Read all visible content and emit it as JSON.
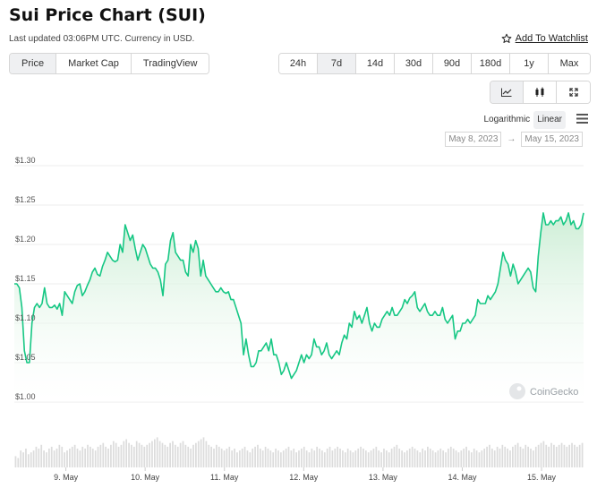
{
  "header": {
    "title": "Sui Price Chart (SUI)",
    "updated": "Last updated 03:06PM UTC. Currency in USD.",
    "watchlist_label": "Add To Watchlist"
  },
  "type_tabs": [
    {
      "label": "Price",
      "active": true
    },
    {
      "label": "Market Cap",
      "active": false
    },
    {
      "label": "TradingView",
      "active": false
    }
  ],
  "range_tabs": [
    {
      "label": "24h",
      "active": false
    },
    {
      "label": "7d",
      "active": true
    },
    {
      "label": "14d",
      "active": false
    },
    {
      "label": "30d",
      "active": false
    },
    {
      "label": "90d",
      "active": false
    },
    {
      "label": "180d",
      "active": false
    },
    {
      "label": "1y",
      "active": false
    },
    {
      "label": "Max",
      "active": false
    }
  ],
  "view_buttons": [
    {
      "icon": "line-chart-icon",
      "active": true
    },
    {
      "icon": "candlestick-icon",
      "active": false
    },
    {
      "icon": "fullscreen-icon",
      "active": false
    }
  ],
  "scale": {
    "log_label": "Logarithmic",
    "linear_label": "Linear",
    "active": "Linear"
  },
  "date_range": {
    "from": "May 8, 2023",
    "arrow": "→",
    "to": "May 15, 2023"
  },
  "watermark": "CoinGecko",
  "colors": {
    "line": "#16c784",
    "area_top": "#d3f2dc",
    "volume": "#dcdcdc",
    "grid": "#eeeeee",
    "active_bg": "#eff0f2"
  },
  "chart_data": {
    "type": "area",
    "title": "",
    "xlabel": "",
    "ylabel": "",
    "ylim": [
      1.0,
      1.3
    ],
    "yticks": [
      {
        "value": 1.3,
        "label": "$1.30"
      },
      {
        "value": 1.25,
        "label": "$1.25"
      },
      {
        "value": 1.2,
        "label": "$1.20"
      },
      {
        "value": 1.15,
        "label": "$1.15"
      },
      {
        "value": 1.1,
        "label": "$1.10"
      },
      {
        "value": 1.05,
        "label": "$1.05"
      },
      {
        "value": 1.0,
        "label": "$1.00"
      }
    ],
    "xticks": [
      {
        "t": 0.65,
        "label": "9. May"
      },
      {
        "t": 1.65,
        "label": "10. May"
      },
      {
        "t": 2.65,
        "label": "11. May"
      },
      {
        "t": 3.65,
        "label": "12. May"
      },
      {
        "t": 4.65,
        "label": "13. May"
      },
      {
        "t": 5.65,
        "label": "14. May"
      },
      {
        "t": 6.65,
        "label": "15. May"
      }
    ],
    "x_range": [
      0,
      7.18
    ],
    "grid": true,
    "legend": "none",
    "series": [
      {
        "values": [
          1.15,
          1.15,
          1.145,
          1.12,
          1.065,
          1.05,
          1.05,
          1.1,
          1.12,
          1.125,
          1.12,
          1.125,
          1.145,
          1.125,
          1.12,
          1.12,
          1.123,
          1.118,
          1.125,
          1.11,
          1.14,
          1.135,
          1.13,
          1.125,
          1.14,
          1.148,
          1.15,
          1.135,
          1.14,
          1.148,
          1.155,
          1.165,
          1.17,
          1.162,
          1.16,
          1.172,
          1.18,
          1.19,
          1.185,
          1.18,
          1.178,
          1.18,
          1.2,
          1.19,
          1.225,
          1.215,
          1.205,
          1.212,
          1.195,
          1.18,
          1.19,
          1.2,
          1.195,
          1.185,
          1.175,
          1.17,
          1.17,
          1.165,
          1.155,
          1.135,
          1.175,
          1.18,
          1.205,
          1.215,
          1.19,
          1.185,
          1.18,
          1.18,
          1.165,
          1.16,
          1.2,
          1.19,
          1.205,
          1.195,
          1.16,
          1.18,
          1.16,
          1.155,
          1.15,
          1.145,
          1.14,
          1.14,
          1.145,
          1.14,
          1.138,
          1.14,
          1.13,
          1.13,
          1.12,
          1.11,
          1.1,
          1.06,
          1.08,
          1.06,
          1.045,
          1.045,
          1.05,
          1.065,
          1.065,
          1.07,
          1.075,
          1.065,
          1.08,
          1.06,
          1.06,
          1.05,
          1.035,
          1.04,
          1.05,
          1.04,
          1.03,
          1.035,
          1.04,
          1.05,
          1.06,
          1.05,
          1.06,
          1.055,
          1.06,
          1.08,
          1.07,
          1.07,
          1.06,
          1.065,
          1.075,
          1.06,
          1.055,
          1.06,
          1.065,
          1.06,
          1.075,
          1.085,
          1.08,
          1.1,
          1.095,
          1.115,
          1.105,
          1.11,
          1.1,
          1.11,
          1.12,
          1.1,
          1.09,
          1.1,
          1.095,
          1.095,
          1.105,
          1.11,
          1.115,
          1.11,
          1.12,
          1.11,
          1.11,
          1.115,
          1.12,
          1.13,
          1.125,
          1.132,
          1.135,
          1.14,
          1.12,
          1.115,
          1.12,
          1.125,
          1.115,
          1.11,
          1.11,
          1.115,
          1.11,
          1.11,
          1.12,
          1.105,
          1.1,
          1.105,
          1.11,
          1.08,
          1.09,
          1.09,
          1.1,
          1.1,
          1.105,
          1.1,
          1.105,
          1.11,
          1.13,
          1.125,
          1.125,
          1.125,
          1.135,
          1.13,
          1.135,
          1.14,
          1.15,
          1.17,
          1.19,
          1.18,
          1.175,
          1.16,
          1.175,
          1.165,
          1.15,
          1.155,
          1.16,
          1.165,
          1.17,
          1.165,
          1.145,
          1.14,
          1.185,
          1.215,
          1.24,
          1.225,
          1.225,
          1.23,
          1.225,
          1.23,
          1.23,
          1.235,
          1.225,
          1.23,
          1.24,
          1.225,
          1.23,
          1.22,
          1.22,
          1.225,
          1.24
        ]
      }
    ],
    "volume": [
      0.3,
      0.25,
      0.45,
      0.4,
      0.5,
      0.35,
      0.4,
      0.45,
      0.55,
      0.5,
      0.6,
      0.45,
      0.4,
      0.5,
      0.55,
      0.45,
      0.5,
      0.6,
      0.55,
      0.4,
      0.45,
      0.5,
      0.55,
      0.6,
      0.5,
      0.45,
      0.55,
      0.5,
      0.6,
      0.55,
      0.5,
      0.45,
      0.55,
      0.6,
      0.65,
      0.55,
      0.5,
      0.6,
      0.7,
      0.65,
      0.55,
      0.6,
      0.7,
      0.75,
      0.65,
      0.6,
      0.55,
      0.7,
      0.65,
      0.6,
      0.55,
      0.6,
      0.65,
      0.7,
      0.75,
      0.8,
      0.7,
      0.65,
      0.6,
      0.55,
      0.65,
      0.7,
      0.6,
      0.55,
      0.65,
      0.7,
      0.6,
      0.55,
      0.5,
      0.6,
      0.65,
      0.7,
      0.75,
      0.8,
      0.7,
      0.6,
      0.55,
      0.5,
      0.6,
      0.55,
      0.5,
      0.45,
      0.5,
      0.55,
      0.45,
      0.5,
      0.4,
      0.45,
      0.5,
      0.55,
      0.45,
      0.4,
      0.5,
      0.55,
      0.6,
      0.5,
      0.45,
      0.55,
      0.5,
      0.45,
      0.4,
      0.5,
      0.45,
      0.4,
      0.45,
      0.5,
      0.55,
      0.45,
      0.5,
      0.4,
      0.45,
      0.5,
      0.55,
      0.45,
      0.4,
      0.5,
      0.45,
      0.55,
      0.5,
      0.45,
      0.4,
      0.5,
      0.55,
      0.45,
      0.5,
      0.55,
      0.5,
      0.45,
      0.4,
      0.5,
      0.45,
      0.4,
      0.45,
      0.5,
      0.55,
      0.5,
      0.45,
      0.4,
      0.45,
      0.5,
      0.55,
      0.45,
      0.4,
      0.5,
      0.45,
      0.4,
      0.5,
      0.55,
      0.6,
      0.5,
      0.45,
      0.4,
      0.45,
      0.5,
      0.55,
      0.5,
      0.45,
      0.4,
      0.5,
      0.45,
      0.55,
      0.5,
      0.45,
      0.4,
      0.45,
      0.5,
      0.45,
      0.4,
      0.5,
      0.55,
      0.5,
      0.45,
      0.4,
      0.45,
      0.5,
      0.55,
      0.45,
      0.4,
      0.5,
      0.45,
      0.4,
      0.45,
      0.5,
      0.55,
      0.6,
      0.5,
      0.45,
      0.55,
      0.5,
      0.6,
      0.55,
      0.5,
      0.45,
      0.55,
      0.6,
      0.65,
      0.55,
      0.5,
      0.6,
      0.55,
      0.5,
      0.45,
      0.55,
      0.6,
      0.65,
      0.7,
      0.6,
      0.55,
      0.65,
      0.6,
      0.55,
      0.6,
      0.65,
      0.6,
      0.55,
      0.6,
      0.65,
      0.6,
      0.55,
      0.6,
      0.65
    ]
  }
}
